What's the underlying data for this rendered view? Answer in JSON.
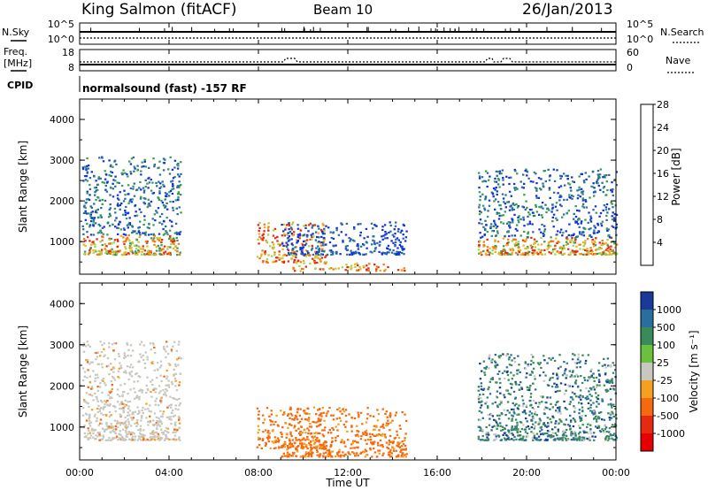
{
  "header": {
    "station": "King Salmon (fitACF)",
    "beam": "Beam 10",
    "date": "26/Jan/2013"
  },
  "noise_panel": {
    "left_label": "N.Sky",
    "right_label": "N.Search",
    "left_ticks": [
      "10^5",
      "10^0"
    ],
    "right_ticks": [
      "10^5",
      "10^0"
    ]
  },
  "freq_panel": {
    "left_label_1": "Freq.",
    "left_label_2": "[MHz]",
    "right_label": "Nave",
    "left_ticks": [
      "18",
      "8"
    ],
    "right_ticks": [
      "60",
      "0"
    ]
  },
  "cpid": {
    "label": "CPID",
    "text": "normalsound (fast) -157 RF"
  },
  "x_axis": {
    "label": "Time UT",
    "ticks": [
      "00:00",
      "04:00",
      "08:00",
      "12:00",
      "16:00",
      "20:00",
      "00:00"
    ]
  },
  "chart_data": [
    {
      "type": "heatmap",
      "title": "",
      "xlabel": "",
      "ylabel": "Slant Range [km]",
      "x_range_hours": [
        0,
        24
      ],
      "ylim": [
        200,
        4500
      ],
      "y_ticks": [
        "1000",
        "2000",
        "3000",
        "4000"
      ],
      "colorbar": {
        "label": "Power [dB]",
        "ticks": [
          "4",
          "8",
          "12",
          "16",
          "20",
          "24",
          "28"
        ],
        "colors": [
          "#1133dd",
          "#2a6e9e",
          "#3a9a5a",
          "#a8d24a",
          "#f0b020",
          "#f57a10",
          "#e62a10"
        ]
      },
      "echo_regions": [
        {
          "t0": 0.1,
          "t1": 4.5,
          "r0": 700,
          "r1": 3100,
          "level": "mixed"
        },
        {
          "t0": 7.9,
          "t1": 11.0,
          "r0": 500,
          "r1": 1500,
          "level": "high"
        },
        {
          "t0": 9.5,
          "t1": 14.5,
          "r0": 300,
          "r1": 500,
          "level": "high"
        },
        {
          "t0": 9.0,
          "t1": 14.6,
          "r0": 700,
          "r1": 1500,
          "level": "low"
        },
        {
          "t0": 17.8,
          "t1": 24.0,
          "r0": 700,
          "r1": 2800,
          "level": "mixed"
        }
      ]
    },
    {
      "type": "heatmap",
      "title": "",
      "xlabel": "Time UT",
      "ylabel": "Slant Range [km]",
      "x_range_hours": [
        0,
        24
      ],
      "ylim": [
        200,
        4500
      ],
      "y_ticks": [
        "1000",
        "2000",
        "3000",
        "4000"
      ],
      "colorbar": {
        "label": "Velocity [m s⁻¹]",
        "ticks": [
          "1000",
          "500",
          "100",
          "25",
          "-25",
          "-100",
          "-500",
          "-1000"
        ],
        "colors": [
          "#1a3a9a",
          "#2a6e9e",
          "#3a8a5a",
          "#6cc040",
          "#c8c8c0",
          "#f5a020",
          "#f56a10",
          "#e62a10",
          "#e60000"
        ]
      },
      "echo_regions": [
        {
          "t0": 0.1,
          "t1": 4.5,
          "r0": 700,
          "r1": 3100,
          "level": "ground-scatter"
        },
        {
          "t0": 7.9,
          "t1": 11.0,
          "r0": 500,
          "r1": 1500,
          "level": "negative"
        },
        {
          "t0": 9.0,
          "t1": 14.6,
          "r0": 300,
          "r1": 1500,
          "level": "negative"
        },
        {
          "t0": 17.8,
          "t1": 24.0,
          "r0": 700,
          "r1": 2800,
          "level": "positive"
        }
      ]
    }
  ]
}
